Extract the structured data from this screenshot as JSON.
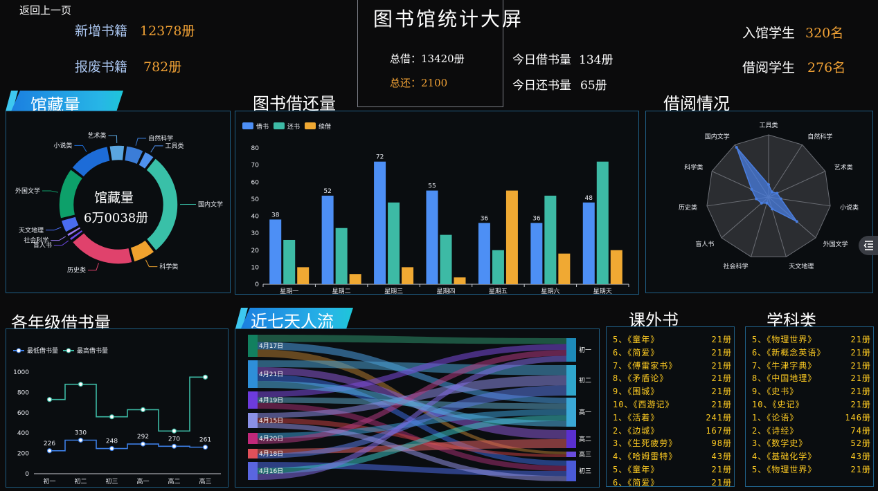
{
  "header": {
    "back_label": "返回上一页",
    "title": "图书馆统计大屏",
    "new_books_label": "新增书籍",
    "new_books_value": "12378册",
    "scrapped_label": "报废书籍",
    "scrapped_value": "782册",
    "total_borrow": "总借：13420册",
    "total_return": "总还：2100",
    "today_borrow_label": "今日借书量",
    "today_borrow_value": "134册",
    "today_return_label": "今日还书量",
    "today_return_value": "65册",
    "enter_students_label": "入馆学生",
    "enter_students_value": "320名",
    "borrow_students_label": "借阅学生",
    "borrow_students_value": "276名"
  },
  "sections": {
    "collection": "馆藏量",
    "borrow_return": "图书借还量",
    "borrow_status": "借阅情况",
    "grade": "各年级借书量",
    "traffic": "近七天人流",
    "extracurricular": "课外书",
    "subject": "学科类"
  },
  "colors": {
    "accent": "#1b7fe0",
    "orange": "#f0a135",
    "yellow": "#ffcc22",
    "panel_border": "#1f5f86"
  },
  "icons": {
    "side_button": "menu-collapse-icon"
  },
  "chart_data": [
    {
      "id": "collection",
      "type": "pie",
      "center_title": "馆藏量",
      "center_value": "6万0038册",
      "labels": [
        "工具类",
        "国内文学",
        "科学类",
        "历史类",
        "盲人书",
        "社会科学",
        "天文地理",
        "外国文学",
        "小说类",
        "艺术类",
        "自然科学"
      ],
      "values": [
        2.5,
        22,
        5,
        14,
        1,
        1,
        3,
        11,
        9,
        3.5,
        4
      ],
      "colors": [
        "#4f92f0",
        "#39c0a8",
        "#f0a22e",
        "#e0426c",
        "#6d49e6",
        "#9a7af0",
        "#4a6cf0",
        "#0da06a",
        "#1d6cd8",
        "#5aa6e0",
        "#3b7dd8"
      ]
    },
    {
      "id": "borrow_return",
      "type": "bar",
      "categories": [
        "星期一",
        "星期二",
        "星期三",
        "星期四",
        "星期五",
        "星期六",
        "星期天"
      ],
      "series": [
        {
          "name": "借书",
          "values": [
            38,
            52,
            72,
            55,
            36,
            36,
            48
          ],
          "color": "#4d8ff5",
          "labels": true
        },
        {
          "name": "还书",
          "values": [
            26,
            33,
            48,
            29,
            20,
            52,
            72
          ],
          "color": "#3dbaa5"
        },
        {
          "name": "续借",
          "values": [
            10,
            6,
            10,
            4,
            55,
            18,
            20
          ],
          "color": "#f0a933"
        }
      ],
      "ylim": [
        0,
        80
      ],
      "yticks": [
        0,
        10,
        20,
        30,
        40,
        50,
        60,
        70,
        80
      ],
      "legend": "top-left"
    },
    {
      "id": "borrow_radar",
      "type": "radar",
      "indicators": [
        "工具类",
        "自然科学",
        "艺术类",
        "小说类",
        "外国文学",
        "天文地理",
        "社会科学",
        "盲人书",
        "历史类",
        "科学类",
        "国内文学"
      ],
      "values": [
        0.2,
        0.1,
        0.15,
        0.2,
        0.6,
        0.2,
        0.1,
        0.15,
        0.2,
        0.3,
        0.95
      ],
      "color": "#4a7ee0"
    },
    {
      "id": "grade",
      "type": "line",
      "categories": [
        "初一",
        "初二",
        "初三",
        "高一",
        "高二",
        "高三"
      ],
      "series": [
        {
          "name": "最低借书量",
          "values": [
            226,
            330,
            248,
            292,
            270,
            261
          ],
          "color": "#3d7fe6",
          "labels": true
        },
        {
          "name": "最高借书量",
          "values": [
            730,
            880,
            560,
            630,
            420,
            950
          ],
          "color": "#3dbaa5"
        }
      ],
      "ylim": [
        0,
        1000
      ],
      "yticks": [
        0,
        200,
        400,
        600,
        800,
        1000
      ],
      "step": true,
      "legend": "top-left"
    },
    {
      "id": "traffic",
      "type": "sankey",
      "sources": [
        "4月17日",
        "4月21日",
        "4月19日",
        "4月15日",
        "4月20日",
        "4月18日",
        "4月16日"
      ],
      "targets": [
        "初一",
        "初二",
        "高一",
        "高二",
        "高三",
        "初三"
      ]
    }
  ],
  "lists": {
    "extracurricular": [
      {
        "name": "5、《童年》",
        "count": "21册"
      },
      {
        "name": "6、《简爱》",
        "count": "21册"
      },
      {
        "name": "7、《傅雷家书》",
        "count": "21册"
      },
      {
        "name": "8、《矛盾论》",
        "count": "21册"
      },
      {
        "name": "9、《围城》",
        "count": "21册"
      },
      {
        "name": "10、《西游记》",
        "count": "21册"
      },
      {
        "name": "1、《活着》",
        "count": "241册"
      },
      {
        "name": "2、《边城》",
        "count": "167册"
      },
      {
        "name": "3、《生死疲劳》",
        "count": "98册"
      },
      {
        "name": "4、《哈姆雷特》",
        "count": "43册"
      },
      {
        "name": "5、《童年》",
        "count": "21册"
      },
      {
        "name": "6、《简爱》",
        "count": "21册"
      }
    ],
    "subject": [
      {
        "name": "5、《物理世界》",
        "count": "21册"
      },
      {
        "name": "6、《新概念英语》",
        "count": "21册"
      },
      {
        "name": "7、《牛津字典》",
        "count": "21册"
      },
      {
        "name": "8、《中国地理》",
        "count": "21册"
      },
      {
        "name": "9、《史书》",
        "count": "21册"
      },
      {
        "name": "10、《史记》",
        "count": "21册"
      },
      {
        "name": "1、《论语》",
        "count": "146册"
      },
      {
        "name": "2、《诗经》",
        "count": "74册"
      },
      {
        "name": "3、《数学史》",
        "count": "52册"
      },
      {
        "name": "4、《基础化学》",
        "count": "43册"
      },
      {
        "name": "5、《物理世界》",
        "count": "21册"
      }
    ]
  }
}
